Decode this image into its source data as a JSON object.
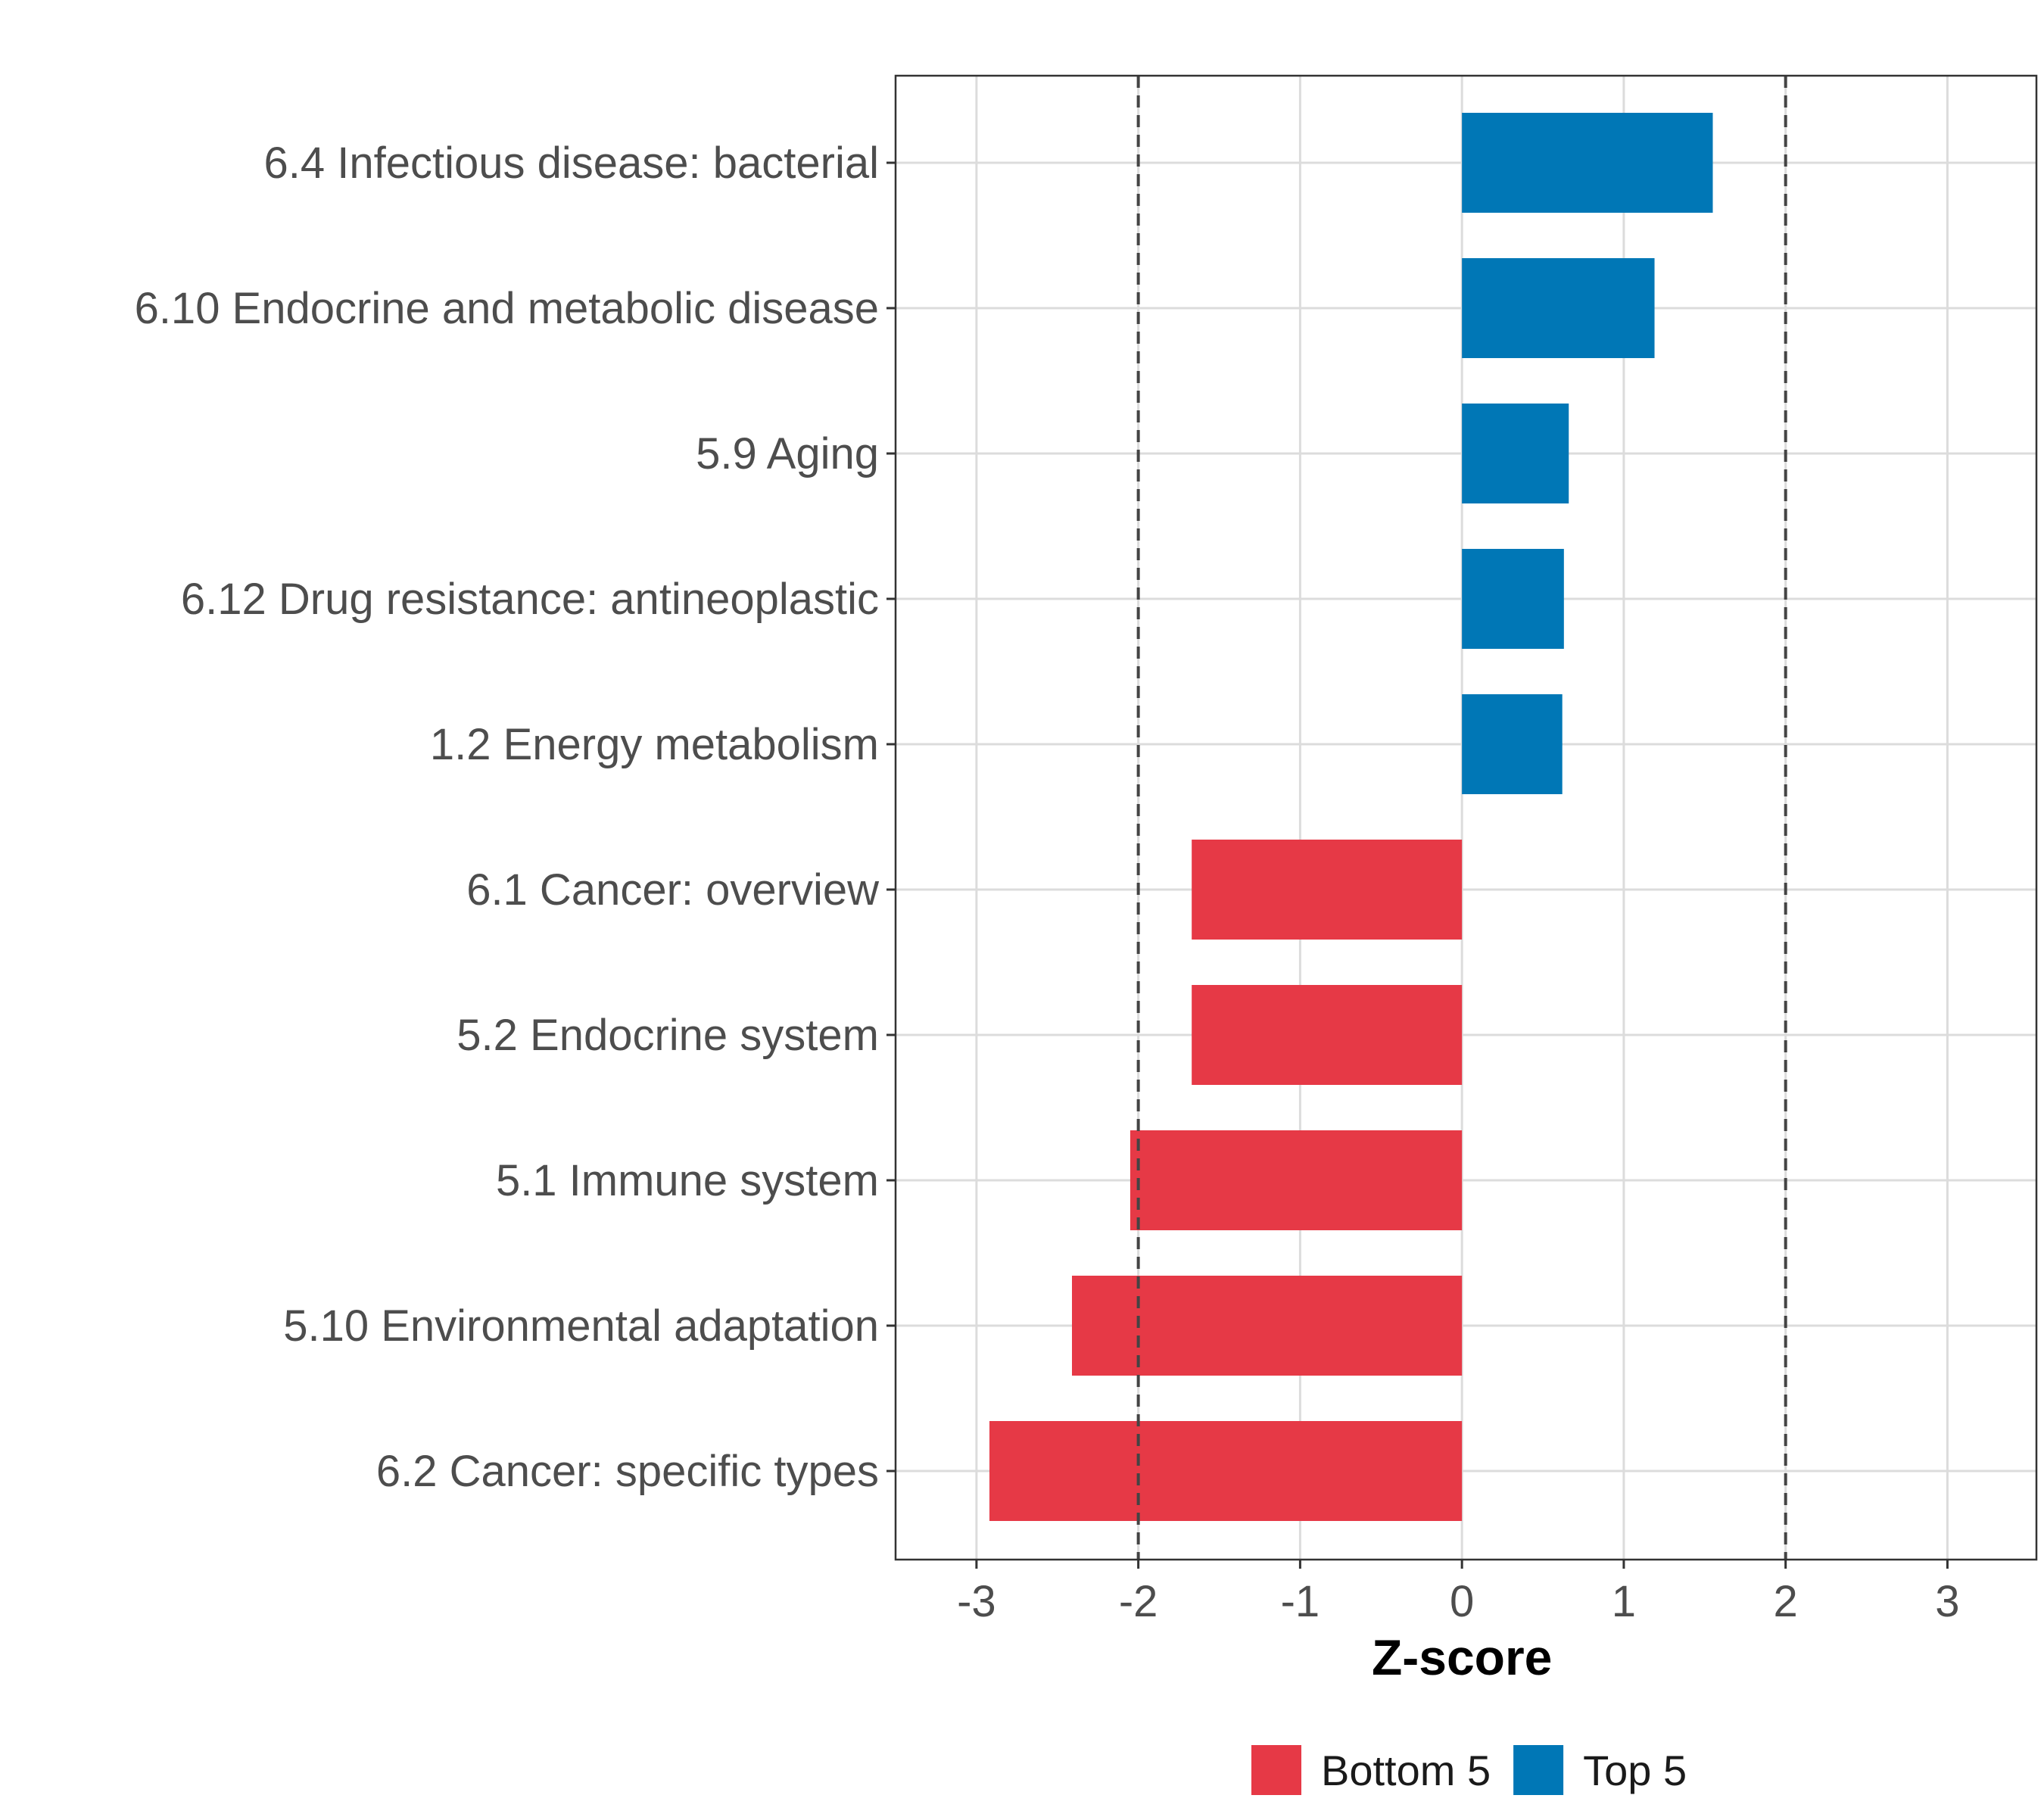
{
  "chart_data": {
    "type": "bar",
    "orientation": "horizontal",
    "categories": [
      "6.4 Infectious disease: bacterial",
      "6.10 Endocrine and metabolic disease",
      "5.9 Aging",
      "6.12 Drug resistance: antineoplastic",
      "1.2 Energy metabolism",
      "6.1 Cancer: overview",
      "5.2 Endocrine system",
      "5.1 Immune system",
      "5.10 Environmental adaptation",
      "6.2 Cancer: specific types"
    ],
    "values": [
      1.55,
      1.19,
      0.66,
      0.63,
      0.62,
      -1.67,
      -1.67,
      -2.05,
      -2.41,
      -2.92
    ],
    "groups": [
      "Top 5",
      "Top 5",
      "Top 5",
      "Top 5",
      "Top 5",
      "Bottom 5",
      "Bottom 5",
      "Bottom 5",
      "Bottom 5",
      "Bottom 5"
    ],
    "xlabel": "Z-score",
    "ylabel": "",
    "xlim": [
      -3.5,
      3.55
    ],
    "xticks": [
      -3,
      -2,
      -1,
      0,
      1,
      2,
      3
    ],
    "reference_lines": [
      -2,
      2
    ],
    "grid": true,
    "legend": {
      "position": "bottom",
      "items": [
        {
          "label": "Bottom 5",
          "color": "#e63946"
        },
        {
          "label": "Top 5",
          "color": "#0077b6"
        }
      ]
    },
    "colors": {
      "Top 5": "#0077b6",
      "Bottom 5": "#e63946"
    }
  }
}
